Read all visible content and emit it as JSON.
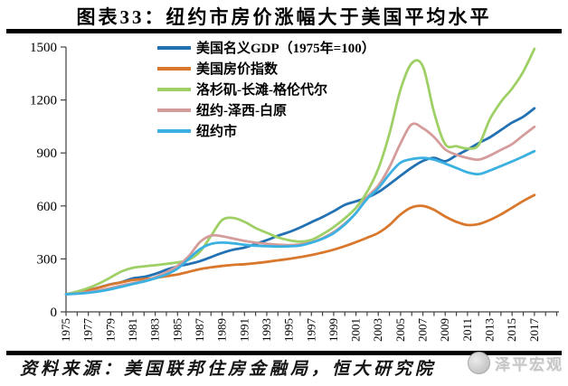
{
  "title": "图表33：纽约市房价涨幅大于美国平均水平",
  "source": "资料来源：美国联邦住房金融局，恒大研究院",
  "watermark": "泽平宏观",
  "colors": {
    "axis": "#404040",
    "gdp_line": "#2271B3",
    "us_hpi_line": "#D9782D",
    "la_line": "#9FD066",
    "ny_metro_line": "#D59C9C",
    "nyc_line": "#3BB1E2"
  },
  "chart_data": {
    "type": "line",
    "title": "",
    "xlabel": "",
    "ylabel": "",
    "ylim": [
      0,
      1500
    ],
    "yticks": [
      0,
      300,
      600,
      900,
      1200,
      1500
    ],
    "grid": false,
    "legend_position": "top-left-inside",
    "x": [
      1975,
      1976,
      1977,
      1978,
      1979,
      1980,
      1981,
      1982,
      1983,
      1984,
      1985,
      1986,
      1987,
      1988,
      1989,
      1990,
      1991,
      1992,
      1993,
      1994,
      1995,
      1996,
      1997,
      1998,
      1999,
      2000,
      2001,
      2002,
      2003,
      2004,
      2005,
      2006,
      2007,
      2008,
      2009,
      2010,
      2011,
      2012,
      2013,
      2014,
      2015,
      2016,
      2017
    ],
    "xticks_shown": [
      1975,
      1977,
      1979,
      1981,
      1983,
      1985,
      1987,
      1989,
      1991,
      1993,
      1995,
      1997,
      1999,
      2001,
      2003,
      2005,
      2007,
      2009,
      2011,
      2013,
      2015,
      2017
    ],
    "series": [
      {
        "name": "美国名义GDP（1975年=100）",
        "color": "#2271B3",
        "values": [
          100,
          110,
          123,
          139,
          156,
          169,
          190,
          198,
          215,
          239,
          257,
          271,
          287,
          310,
          334,
          352,
          364,
          385,
          406,
          431,
          452,
          478,
          508,
          537,
          570,
          606,
          626,
          647,
          678,
          723,
          771,
          817,
          855,
          872,
          853,
          886,
          919,
          956,
          988,
          1030,
          1072,
          1105,
          1153
        ]
      },
      {
        "name": "美国房价指数",
        "color": "#D9782D",
        "values": [
          100,
          110,
          122,
          138,
          155,
          168,
          180,
          186,
          192,
          202,
          212,
          227,
          242,
          252,
          260,
          266,
          270,
          276,
          283,
          292,
          300,
          310,
          322,
          336,
          352,
          372,
          395,
          420,
          447,
          492,
          552,
          592,
          600,
          578,
          540,
          510,
          492,
          497,
          520,
          552,
          590,
          628,
          662
        ]
      },
      {
        "name": "洛杉矶-长滩-格伦代尔",
        "color": "#9FD066",
        "values": [
          100,
          115,
          135,
          162,
          195,
          230,
          250,
          258,
          264,
          272,
          280,
          295,
          340,
          430,
          520,
          532,
          510,
          475,
          448,
          422,
          406,
          398,
          408,
          440,
          480,
          530,
          590,
          680,
          810,
          1010,
          1260,
          1408,
          1390,
          1130,
          950,
          938,
          925,
          945,
          1090,
          1190,
          1265,
          1360,
          1490
        ]
      },
      {
        "name": "纽约-泽西-白原",
        "color": "#D59C9C",
        "values": [
          100,
          105,
          112,
          122,
          135,
          150,
          163,
          175,
          196,
          225,
          260,
          315,
          395,
          432,
          428,
          415,
          402,
          392,
          386,
          381,
          378,
          382,
          394,
          418,
          452,
          500,
          560,
          650,
          715,
          820,
          955,
          1062,
          1040,
          990,
          920,
          890,
          872,
          862,
          885,
          918,
          950,
          1000,
          1048
        ]
      },
      {
        "name": "纽约市",
        "color": "#3BB1E2",
        "values": [
          100,
          103,
          108,
          116,
          128,
          143,
          158,
          172,
          190,
          212,
          245,
          300,
          355,
          385,
          392,
          388,
          380,
          375,
          372,
          370,
          371,
          376,
          392,
          414,
          446,
          495,
          560,
          640,
          700,
          780,
          845,
          865,
          872,
          862,
          840,
          815,
          790,
          780,
          800,
          826,
          852,
          880,
          910
        ]
      }
    ]
  }
}
